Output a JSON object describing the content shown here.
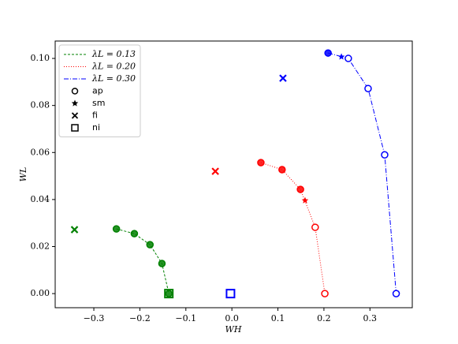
{
  "chart_data": {
    "type": "line",
    "xlabel": "WH",
    "ylabel": "WL",
    "xlim": [
      -0.384,
      0.392
    ],
    "ylim": [
      -0.006,
      0.1074
    ],
    "xticks": [
      {
        "value": -0.3,
        "label": "−0.3"
      },
      {
        "value": -0.2,
        "label": "−0.2"
      },
      {
        "value": -0.1,
        "label": "−0.1"
      },
      {
        "value": 0.0,
        "label": "0.0"
      },
      {
        "value": 0.1,
        "label": "0.1"
      },
      {
        "value": 0.2,
        "label": "0.2"
      },
      {
        "value": 0.3,
        "label": "0.3"
      }
    ],
    "yticks": [
      {
        "value": 0,
        "label": "0.00"
      },
      {
        "value": 0.02,
        "label": "0.02"
      },
      {
        "value": 0.04,
        "label": "0.04"
      },
      {
        "value": 0.06,
        "label": "0.06"
      },
      {
        "value": 0.08,
        "label": "0.08"
      },
      {
        "value": 0.1,
        "label": "0.10"
      }
    ],
    "legend": "upper left",
    "legend_markers": [
      "ap",
      "sm",
      "fi",
      "ni"
    ],
    "series": [
      {
        "name": "λL = 0.13",
        "color": "#008000",
        "dash": "3,2",
        "x": [
          -0.251,
          -0.212,
          -0.178,
          -0.152,
          -0.137
        ],
        "y": [
          0.0275,
          0.0255,
          0.0208,
          0.0128,
          0
        ],
        "filled": [
          true,
          true,
          true,
          true,
          true
        ],
        "fi": [
          -0.342,
          0.0272
        ],
        "ni": [
          -0.137,
          0
        ]
      },
      {
        "name": "λL = 0.20",
        "color": "#ff0000",
        "dash": "1,2",
        "x": [
          0.063,
          0.109,
          0.149,
          0.181,
          0.202
        ],
        "y": [
          0.0557,
          0.0527,
          0.0443,
          0.0282,
          0
        ],
        "filled": [
          true,
          true,
          true,
          false,
          false
        ],
        "sm": [
          0.159,
          0.0396
        ],
        "fi": [
          -0.036,
          0.052
        ]
      },
      {
        "name": "λL = 0.30",
        "color": "#0000ff",
        "dash": "6,2,1,2",
        "x": [
          0.209,
          0.253,
          0.296,
          0.332,
          0.357
        ],
        "y": [
          0.1023,
          0.1,
          0.0872,
          0.059,
          0
        ],
        "filled": [
          true,
          false,
          false,
          false,
          false
        ],
        "sm": [
          0.238,
          0.1007
        ],
        "fi": [
          0.111,
          0.0916
        ],
        "ni": [
          -0.003,
          0
        ]
      }
    ]
  }
}
